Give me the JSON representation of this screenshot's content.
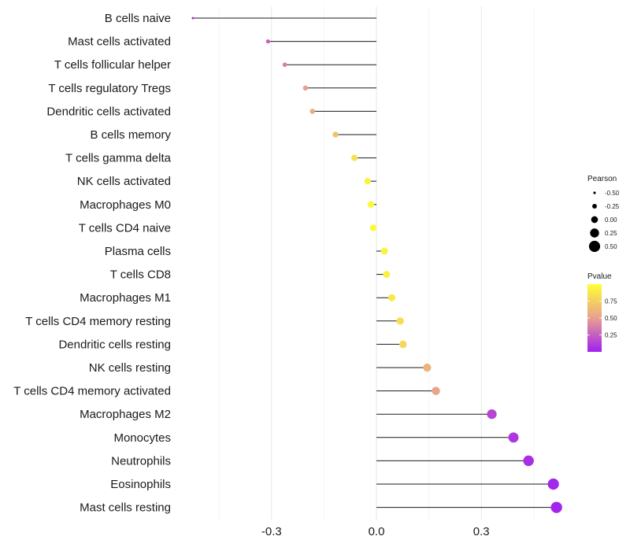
{
  "chart_data": {
    "type": "lollipop",
    "categories": [
      "B cells naive",
      "Mast cells activated",
      "T cells follicular helper",
      "T cells regulatory  Tregs ",
      "Dendritic cells activated",
      "B cells memory",
      "T cells gamma delta",
      "NK cells activated",
      "Macrophages M0",
      "T cells CD4 naive",
      "Plasma cells",
      "T cells CD8",
      "Macrophages M1",
      "T cells CD4 memory resting",
      "Dendritic cells resting",
      "NK cells resting",
      "T cells CD4 memory activated",
      "Macrophages M2",
      "Monocytes",
      "Neutrophils",
      "Eosinophils",
      "Mast cells resting"
    ],
    "values": [
      -0.525,
      -0.31,
      -0.262,
      -0.203,
      -0.183,
      -0.117,
      -0.063,
      -0.025,
      -0.016,
      -0.009,
      0.023,
      0.029,
      0.044,
      0.068,
      0.076,
      0.145,
      0.17,
      0.33,
      0.392,
      0.435,
      0.506,
      0.515
    ],
    "pvalues": [
      0.02,
      0.25,
      0.38,
      0.5,
      0.55,
      0.68,
      0.84,
      0.93,
      0.95,
      0.97,
      0.93,
      0.92,
      0.88,
      0.82,
      0.79,
      0.6,
      0.52,
      0.15,
      0.09,
      0.06,
      0.03,
      0.02
    ],
    "xlim": [
      -0.57,
      0.57
    ],
    "xticks": [
      -0.3,
      0.0,
      0.3
    ],
    "xtick_labels": [
      "-0.3",
      "0.0",
      "0.3"
    ],
    "xlabel": "",
    "ylabel": "",
    "grid": true,
    "legend": {
      "size_title": "Pearson",
      "size_levels": [
        -0.5,
        -0.25,
        0.0,
        0.25,
        0.5
      ],
      "size_labels": [
        "-0.50",
        "-0.25",
        "0.00",
        "0.25",
        "0.50"
      ],
      "color_title": "Pvalue",
      "color_ticks": [
        0.25,
        0.5,
        0.75
      ],
      "color_labels": [
        "0.25",
        "0.50",
        "0.75"
      ],
      "color_range": [
        0.0,
        1.0
      ],
      "color_low": "#a020f0",
      "color_mid": "#e8a090",
      "color_high": "#ffff33",
      "placement": "right"
    }
  }
}
